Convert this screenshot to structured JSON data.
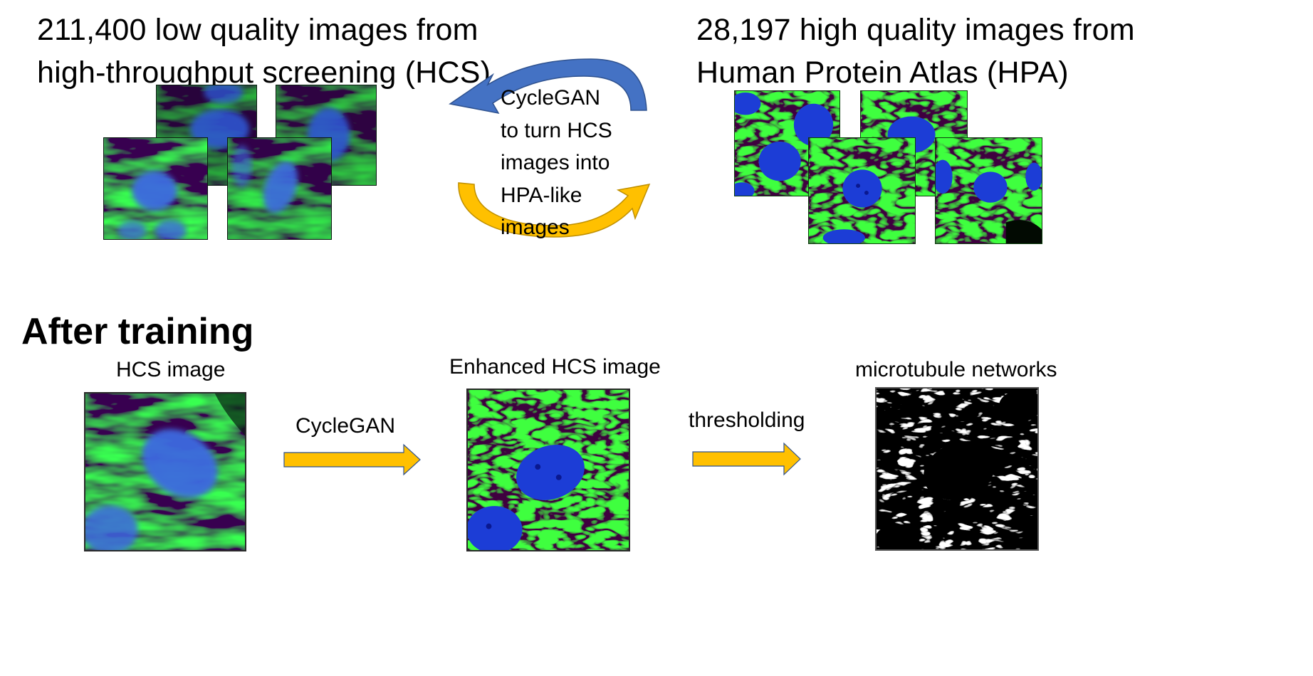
{
  "top_left": {
    "heading_line1": "211,400 low quality images from",
    "heading_line2": "high-throughput screening (HCS)"
  },
  "top_right": {
    "heading_line1": "28,197 high quality images from",
    "heading_line2": "Human Protein Atlas (HPA)"
  },
  "cycle": {
    "lines": [
      "CycleGAN",
      "to turn HCS",
      "images into",
      "HPA-like",
      "images"
    ]
  },
  "after_training": {
    "title": "After training",
    "hcs_caption": "HCS image",
    "enhanced_caption": "Enhanced HCS image",
    "network_caption": "microtubule networks",
    "arrow1_label": "CycleGAN",
    "arrow2_label": "thresholding"
  },
  "colors": {
    "blue_arrow": "#4472c4",
    "gold_arrow": "#ffc000",
    "microtubule_green": "#22c21a",
    "nucleus_blue": "#1c3dd6"
  },
  "icons": {
    "cycle_top": "curved-arrow-left",
    "cycle_bottom": "curved-arrow-right",
    "process": "block-arrow-right"
  }
}
